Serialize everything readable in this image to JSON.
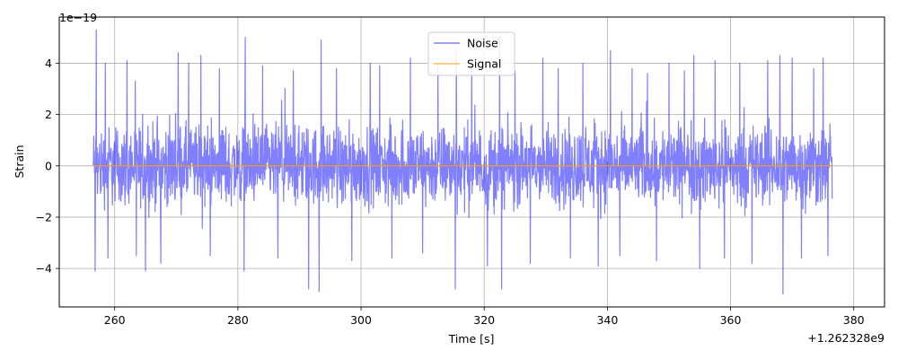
{
  "chart_data": {
    "type": "line",
    "title": "",
    "xlabel": "Time [s]",
    "ylabel": "Strain",
    "x_offset_label": "+1.262328e9",
    "y_exponent_label": "1e−19",
    "xlim": [
      251,
      385
    ],
    "ylim": [
      -5.5,
      5.8
    ],
    "x_ticks": [
      260,
      280,
      300,
      320,
      340,
      360,
      380
    ],
    "x_tick_labels": [
      "260",
      "280",
      "300",
      "320",
      "340",
      "360",
      "380"
    ],
    "y_ticks": [
      -4,
      -2,
      0,
      2,
      4
    ],
    "y_tick_labels": [
      "−4",
      "−2",
      "0",
      "2",
      "4"
    ],
    "grid": true,
    "legend_position": "top-center",
    "series": [
      {
        "name": "Noise",
        "color": "#0000ff",
        "alpha": 0.5,
        "x_range": [
          256.5,
          376.5
        ],
        "band": [
          -2.0,
          2.0
        ],
        "peaks": [
          {
            "x": 257.0,
            "y": 5.3
          },
          {
            "x": 256.8,
            "y": -4.1
          },
          {
            "x": 258.5,
            "y": 4.0
          },
          {
            "x": 258.9,
            "y": -3.6
          },
          {
            "x": 262.0,
            "y": 4.1
          },
          {
            "x": 263.5,
            "y": -3.5
          },
          {
            "x": 265.0,
            "y": -4.1
          },
          {
            "x": 267.5,
            "y": -3.8
          },
          {
            "x": 270.3,
            "y": 4.4
          },
          {
            "x": 272.0,
            "y": 4.0
          },
          {
            "x": 274.0,
            "y": 4.3
          },
          {
            "x": 275.5,
            "y": -3.5
          },
          {
            "x": 277.0,
            "y": 3.8
          },
          {
            "x": 281.2,
            "y": 5.0
          },
          {
            "x": 281.0,
            "y": -4.1
          },
          {
            "x": 284.0,
            "y": 3.9
          },
          {
            "x": 286.5,
            "y": -3.6
          },
          {
            "x": 289.0,
            "y": 3.7
          },
          {
            "x": 291.5,
            "y": -4.8
          },
          {
            "x": 293.5,
            "y": 4.9
          },
          {
            "x": 293.2,
            "y": -4.9
          },
          {
            "x": 296.0,
            "y": 3.8
          },
          {
            "x": 298.5,
            "y": -3.7
          },
          {
            "x": 301.5,
            "y": 4.0
          },
          {
            "x": 303.0,
            "y": 3.9
          },
          {
            "x": 305.0,
            "y": -3.6
          },
          {
            "x": 308.0,
            "y": 4.2
          },
          {
            "x": 310.0,
            "y": -3.4
          },
          {
            "x": 312.5,
            "y": 3.9
          },
          {
            "x": 315.5,
            "y": 4.5
          },
          {
            "x": 315.3,
            "y": -4.8
          },
          {
            "x": 318.0,
            "y": 4.2
          },
          {
            "x": 320.5,
            "y": -3.9
          },
          {
            "x": 322.5,
            "y": 5.0
          },
          {
            "x": 322.8,
            "y": -4.8
          },
          {
            "x": 325.0,
            "y": 3.7
          },
          {
            "x": 327.5,
            "y": -3.8
          },
          {
            "x": 329.5,
            "y": 4.2
          },
          {
            "x": 332.0,
            "y": 3.8
          },
          {
            "x": 334.0,
            "y": -3.6
          },
          {
            "x": 336.0,
            "y": 4.0
          },
          {
            "x": 338.5,
            "y": -3.9
          },
          {
            "x": 340.5,
            "y": 4.5
          },
          {
            "x": 342.0,
            "y": -3.5
          },
          {
            "x": 344.0,
            "y": 3.8
          },
          {
            "x": 346.5,
            "y": 3.6
          },
          {
            "x": 348.0,
            "y": -3.7
          },
          {
            "x": 350.0,
            "y": 4.0
          },
          {
            "x": 352.5,
            "y": 3.7
          },
          {
            "x": 354.0,
            "y": 4.3
          },
          {
            "x": 355.0,
            "y": -4.0
          },
          {
            "x": 357.5,
            "y": 4.1
          },
          {
            "x": 359.0,
            "y": -3.6
          },
          {
            "x": 361.5,
            "y": 4.0
          },
          {
            "x": 363.5,
            "y": -3.8
          },
          {
            "x": 366.0,
            "y": 4.1
          },
          {
            "x": 368.0,
            "y": 4.3
          },
          {
            "x": 368.5,
            "y": -5.0
          },
          {
            "x": 370.0,
            "y": 4.2
          },
          {
            "x": 371.5,
            "y": -3.6
          },
          {
            "x": 373.5,
            "y": 3.8
          },
          {
            "x": 375.0,
            "y": 4.2
          },
          {
            "x": 375.8,
            "y": -3.5
          }
        ]
      },
      {
        "name": "Signal",
        "color": "#ffa500",
        "x": [
          256.5,
          376.5
        ],
        "y": [
          0,
          0
        ]
      }
    ]
  }
}
